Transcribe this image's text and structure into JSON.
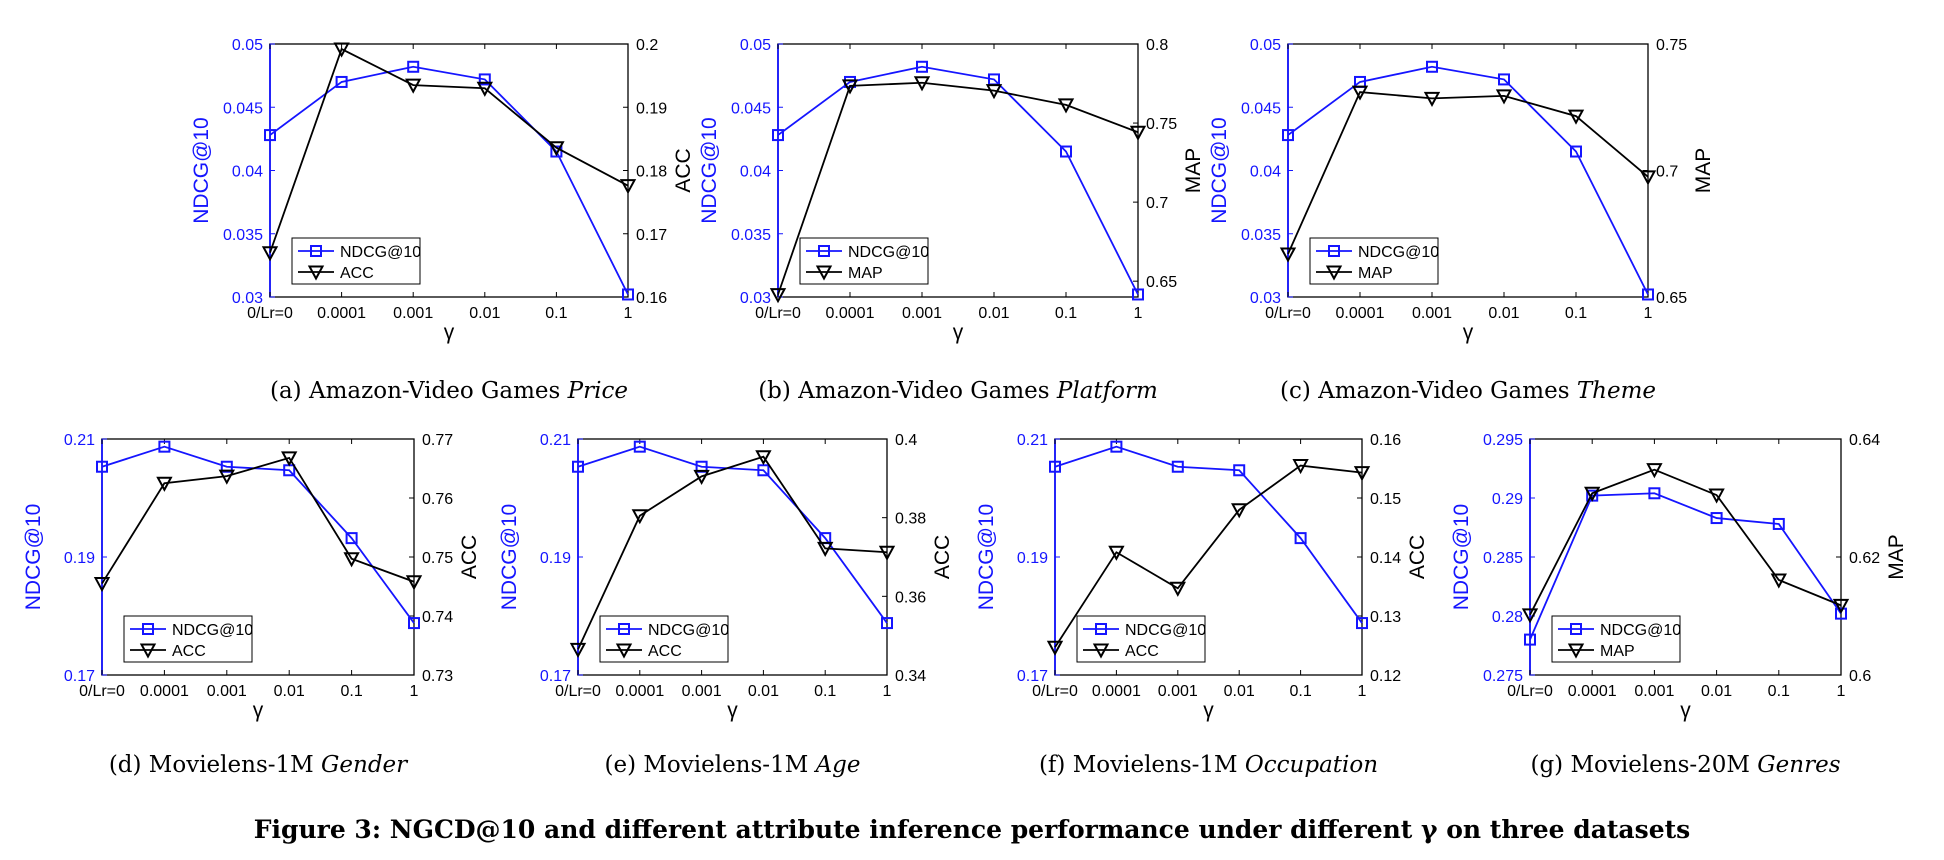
{
  "colors": {
    "left_series": "#1515ff",
    "right_series": "#000000",
    "background": "#ffffff"
  },
  "figure_caption": "Figure 3: NGCD@10 and different attribute inference performance under different γ on three datasets",
  "chart_data": [
    {
      "type": "line",
      "caption_prefix": "(a)  Amazon-Video Games ",
      "caption_italic": "Price",
      "categories": [
        "0/Lr=0",
        "0.0001",
        "0.001",
        "0.01",
        "0.1",
        "1"
      ],
      "xlabel": "γ",
      "left_axis": {
        "label": "NDCG@10",
        "range": [
          0.03,
          0.05
        ],
        "ticks": [
          "0.03",
          "0.035",
          "0.04",
          "0.045",
          "0.05"
        ]
      },
      "right_axis": {
        "label": "ACC",
        "range": [
          0.16,
          0.2
        ],
        "ticks": [
          "0.16",
          "0.17",
          "0.18",
          "0.19",
          "0.2"
        ]
      },
      "series": [
        {
          "name": "NDCG@10",
          "axis": "left",
          "marker": "square",
          "values": [
            0.0428,
            0.047,
            0.0482,
            0.0472,
            0.0415,
            0.0302
          ]
        },
        {
          "name": "ACC",
          "axis": "right",
          "marker": "triangle-down",
          "values": [
            0.167,
            0.1992,
            0.1935,
            0.193,
            0.1836,
            0.1776
          ]
        }
      ],
      "legend": "lower-left",
      "grid": false
    },
    {
      "type": "line",
      "caption_prefix": "(b)  Amazon-Video Games ",
      "caption_italic": "Platform",
      "categories": [
        "0/Lr=0",
        "0.0001",
        "0.001",
        "0.01",
        "0.1",
        "1"
      ],
      "xlabel": "γ",
      "left_axis": {
        "label": "NDCG@10",
        "range": [
          0.03,
          0.05
        ],
        "ticks": [
          "0.03",
          "0.035",
          "0.04",
          "0.045",
          "0.05"
        ]
      },
      "right_axis": {
        "label": "MAP",
        "range": [
          0.64,
          0.8
        ],
        "ticks": [
          "0.65",
          "0.7",
          "0.75",
          "0.8"
        ]
      },
      "series": [
        {
          "name": "NDCG@10",
          "axis": "left",
          "marker": "square",
          "values": [
            0.0428,
            0.047,
            0.0482,
            0.0472,
            0.0415,
            0.0302
          ]
        },
        {
          "name": "MAP",
          "axis": "right",
          "marker": "triangle-down",
          "values": [
            0.6415,
            0.7735,
            0.7755,
            0.7705,
            0.7615,
            0.7442
          ]
        }
      ],
      "legend": "lower-left",
      "grid": false
    },
    {
      "type": "line",
      "caption_prefix": "(c)  Amazon-Video Games ",
      "caption_italic": "Theme",
      "categories": [
        "0/Lr=0",
        "0.0001",
        "0.001",
        "0.01",
        "0.1",
        "1"
      ],
      "xlabel": "γ",
      "left_axis": {
        "label": "NDCG@10",
        "range": [
          0.03,
          0.05
        ],
        "ticks": [
          "0.03",
          "0.035",
          "0.04",
          "0.045",
          "0.05"
        ]
      },
      "right_axis": {
        "label": "MAP",
        "range": [
          0.65,
          0.75
        ],
        "ticks": [
          "0.65",
          "0.7",
          "0.75"
        ]
      },
      "series": [
        {
          "name": "NDCG@10",
          "axis": "left",
          "marker": "square",
          "values": [
            0.0428,
            0.047,
            0.0482,
            0.0472,
            0.0415,
            0.0302
          ]
        },
        {
          "name": "MAP",
          "axis": "right",
          "marker": "triangle-down",
          "values": [
            0.667,
            0.731,
            0.7285,
            0.7295,
            0.7215,
            0.6975
          ]
        }
      ],
      "legend": "lower-left",
      "grid": false
    },
    {
      "type": "line",
      "caption_prefix": "(d)  Movielens-1M ",
      "caption_italic": "Gender",
      "categories": [
        "0/Lr=0",
        "0.0001",
        "0.001",
        "0.01",
        "0.1",
        "1"
      ],
      "xlabel": "γ",
      "left_axis": {
        "label": "NDCG@10",
        "range": [
          0.17,
          0.21
        ],
        "ticks": [
          "0.17",
          "0.19",
          "0.21"
        ]
      },
      "right_axis": {
        "label": "ACC",
        "range": [
          0.73,
          0.77
        ],
        "ticks": [
          "0.73",
          "0.74",
          "0.75",
          "0.76",
          "0.77"
        ]
      },
      "series": [
        {
          "name": "NDCG@10",
          "axis": "left",
          "marker": "square",
          "values": [
            0.2053,
            0.2087,
            0.2053,
            0.2047,
            0.1932,
            0.1788
          ]
        },
        {
          "name": "ACC",
          "axis": "right",
          "marker": "triangle-down",
          "values": [
            0.7455,
            0.7625,
            0.7637,
            0.7668,
            0.7497,
            0.7458
          ]
        }
      ],
      "legend": "lower-left",
      "grid": false
    },
    {
      "type": "line",
      "caption_prefix": "(e)  Movielens-1M ",
      "caption_italic": "Age",
      "categories": [
        "0/Lr=0",
        "0.0001",
        "0.001",
        "0.01",
        "0.1",
        "1"
      ],
      "xlabel": "γ",
      "left_axis": {
        "label": "NDCG@10",
        "range": [
          0.17,
          0.21
        ],
        "ticks": [
          "0.17",
          "0.19",
          "0.21"
        ]
      },
      "right_axis": {
        "label": "ACC",
        "range": [
          0.34,
          0.4
        ],
        "ticks": [
          "0.34",
          "0.36",
          "0.38",
          "0.4"
        ]
      },
      "series": [
        {
          "name": "NDCG@10",
          "axis": "left",
          "marker": "square",
          "values": [
            0.2053,
            0.2087,
            0.2053,
            0.2047,
            0.1932,
            0.1788
          ]
        },
        {
          "name": "ACC",
          "axis": "right",
          "marker": "triangle-down",
          "values": [
            0.3465,
            0.3805,
            0.3905,
            0.3955,
            0.3722,
            0.3712
          ]
        }
      ],
      "legend": "lower-left",
      "grid": false
    },
    {
      "type": "line",
      "caption_prefix": "(f)  Movielens-1M ",
      "caption_italic": "Occupation",
      "categories": [
        "0/Lr=0",
        "0.0001",
        "0.001",
        "0.01",
        "0.1",
        "1"
      ],
      "xlabel": "γ",
      "left_axis": {
        "label": "NDCG@10",
        "range": [
          0.17,
          0.21
        ],
        "ticks": [
          "0.17",
          "0.19",
          "0.21"
        ]
      },
      "right_axis": {
        "label": "ACC",
        "range": [
          0.12,
          0.16
        ],
        "ticks": [
          "0.12",
          "0.13",
          "0.14",
          "0.15",
          "0.16"
        ]
      },
      "series": [
        {
          "name": "NDCG@10",
          "axis": "left",
          "marker": "square",
          "values": [
            0.2053,
            0.2087,
            0.2053,
            0.2047,
            0.1932,
            0.1788
          ]
        },
        {
          "name": "ACC",
          "axis": "right",
          "marker": "triangle-down",
          "values": [
            0.1247,
            0.1408,
            0.1347,
            0.148,
            0.1555,
            0.1543
          ]
        }
      ],
      "legend": "lower-left",
      "grid": false
    },
    {
      "type": "line",
      "caption_prefix": "(g)  Movielens-20M ",
      "caption_italic": "Genres",
      "categories": [
        "0/Lr=0",
        "0.0001",
        "0.001",
        "0.01",
        "0.1",
        "1"
      ],
      "xlabel": "γ",
      "left_axis": {
        "label": "NDCG@10",
        "range": [
          0.275,
          0.295
        ],
        "ticks": [
          "0.275",
          "0.28",
          "0.285",
          "0.29",
          "0.295"
        ]
      },
      "right_axis": {
        "label": "MAP",
        "range": [
          0.6,
          0.64
        ],
        "ticks": [
          "0.6",
          "0.62",
          "0.64"
        ]
      },
      "series": [
        {
          "name": "NDCG@10",
          "axis": "left",
          "marker": "square",
          "values": [
            0.278,
            0.2902,
            0.2904,
            0.2883,
            0.2878,
            0.2802
          ]
        },
        {
          "name": "MAP",
          "axis": "right",
          "marker": "triangle-down",
          "values": [
            0.6102,
            0.6308,
            0.6348,
            0.6305,
            0.6161,
            0.6118
          ]
        }
      ],
      "legend": "lower-left",
      "grid": false
    }
  ]
}
